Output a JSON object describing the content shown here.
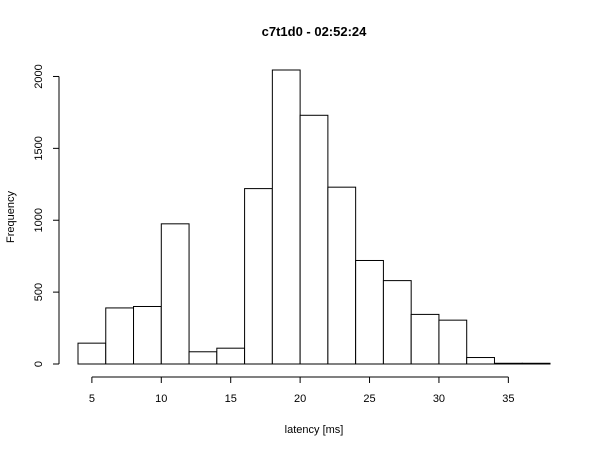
{
  "chart_data": {
    "type": "bar",
    "title": "c7t1d0 - 02:52:24",
    "xlabel": "latency [ms]",
    "ylabel": "Frequency",
    "bin_edges": [
      4,
      6,
      8,
      10,
      12,
      14,
      16,
      18,
      20,
      22,
      24,
      26,
      28,
      30,
      32,
      34,
      36,
      38
    ],
    "values": [
      145,
      390,
      400,
      975,
      85,
      110,
      1220,
      2045,
      1730,
      1230,
      720,
      580,
      345,
      305,
      45,
      5,
      5
    ],
    "xlim": [
      4,
      38
    ],
    "ylim": [
      0,
      2045
    ],
    "x_ticks": [
      5,
      10,
      15,
      20,
      25,
      30,
      35
    ],
    "y_ticks": [
      0,
      500,
      1000,
      1500,
      2000
    ],
    "grid": false
  }
}
